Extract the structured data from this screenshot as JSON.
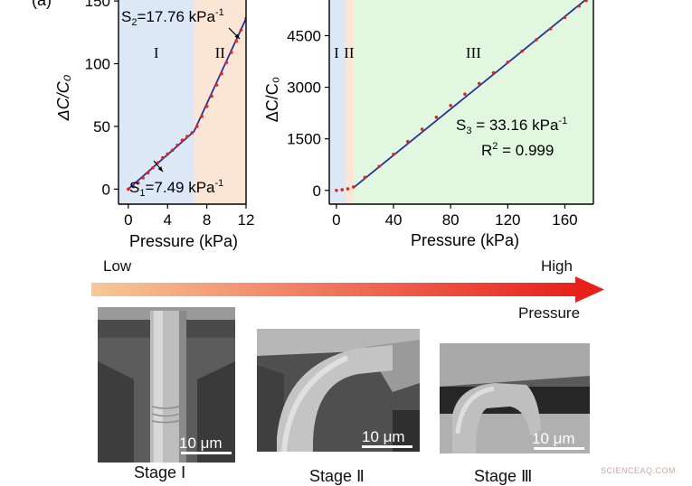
{
  "panel_label": "(a)",
  "chart_data": [
    {
      "type": "line",
      "ylabel": "ΔC/C₀",
      "xlabel": "Pressure (kPa)",
      "xlim": [
        -1,
        12
      ],
      "ylim": [
        -12,
        158
      ],
      "x_ticks": [
        0,
        4,
        8,
        12
      ],
      "y_ticks": [
        0,
        50,
        100,
        150
      ],
      "regions": [
        {
          "label": "I",
          "from": -1,
          "to": 6.7,
          "color": "#dce8f5"
        },
        {
          "label": "II",
          "from": 6.7,
          "to": 12,
          "color": "#fbe6d6"
        }
      ],
      "series": [
        {
          "style": "dotted-markers",
          "color": "#e5231c",
          "x": [
            0,
            0.5,
            1,
            1.5,
            2,
            2.5,
            3,
            3.5,
            4,
            4.5,
            5,
            5.5,
            6,
            6.5,
            7,
            7.5,
            8,
            8.5,
            9,
            9.5,
            10,
            10.5,
            11,
            11.5,
            12
          ],
          "y": [
            0,
            2,
            5,
            9,
            13,
            17,
            21,
            25,
            28,
            31,
            35,
            39,
            42,
            45,
            50,
            58,
            66,
            74,
            83,
            92,
            101,
            109,
            118,
            127,
            136
          ]
        },
        {
          "style": "fit-line",
          "color": "#27339b",
          "x": [
            0,
            6.7,
            12
          ],
          "y": [
            0,
            46,
            136
          ]
        }
      ],
      "annotations": [
        {
          "text_main": "S",
          "text_sub": "2",
          "text_rest": "=17.76  kPa",
          "text_sup": "-1"
        },
        {
          "text_main": "S",
          "text_sub": "1",
          "text_rest": "=7.49  kPa",
          "text_sup": "-1"
        }
      ]
    },
    {
      "type": "line",
      "ylabel": "ΔC/C₀",
      "xlabel": "Pressure (kPa)",
      "xlim": [
        -5,
        180
      ],
      "ylim": [
        -400,
        5800
      ],
      "x_ticks": [
        0,
        40,
        80,
        120,
        160
      ],
      "y_ticks": [
        0,
        1500,
        3000,
        4500
      ],
      "regions": [
        {
          "label": "I",
          "from": -5,
          "to": 6.5,
          "color": "#dce8f5"
        },
        {
          "label": "II",
          "from": 6.5,
          "to": 12,
          "color": "#fbe6d6"
        },
        {
          "label": "III",
          "from": 12,
          "to": 180,
          "color": "#e2f7e0"
        }
      ],
      "series": [
        {
          "style": "dotted-markers",
          "color": "#e5231c",
          "x": [
            0,
            4,
            8,
            12,
            20,
            30,
            40,
            50,
            60,
            70,
            80,
            90,
            100,
            110,
            120,
            130,
            140,
            150,
            160,
            170,
            175
          ],
          "y": [
            0,
            20,
            45,
            100,
            380,
            700,
            1050,
            1420,
            1780,
            2130,
            2470,
            2800,
            3110,
            3420,
            3730,
            4050,
            4380,
            4700,
            5030,
            5360,
            5520
          ]
        },
        {
          "style": "fit-line",
          "color": "#27339b",
          "x": [
            12,
            175
          ],
          "y": [
            80,
            5560
          ]
        }
      ],
      "annotations": [
        {
          "text_main": "S",
          "text_sub": "3",
          "text_rest": " = 33.16  kPa",
          "text_sup": "-1"
        },
        {
          "text_main": "R",
          "text_sup": "2",
          "text_rest": " = 0.999"
        }
      ]
    }
  ],
  "gradient_arrow": {
    "left_label": "Low",
    "right_label": "High",
    "under_label": "Pressure",
    "color_start": "#f7c89a",
    "color_end": "#e8201c"
  },
  "sem_images": [
    {
      "scale_text": "10 μm",
      "caption": "Stage Ⅰ"
    },
    {
      "scale_text": "10 μm",
      "caption": "Stage Ⅱ"
    },
    {
      "scale_text": "10 μm",
      "caption": "Stage Ⅲ"
    }
  ],
  "watermark": "SCIENCEAQ.COM"
}
